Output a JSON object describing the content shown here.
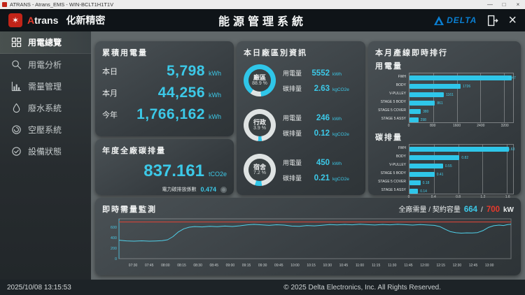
{
  "window": {
    "title": "ATRANS - Atrans_EMS - WIN-BCLT1H1T1V",
    "minimize_glyph": "—",
    "maximize_glyph": "□",
    "close_glyph": "×"
  },
  "header": {
    "logo_glyph": "✶",
    "brand_a": "A",
    "brand_rest": "trans",
    "brand_cn": "化新精密",
    "title": "能源管理系統",
    "delta_text": "DELTA",
    "close_glyph": "×"
  },
  "sidebar": {
    "items": [
      {
        "label": "用電總覽",
        "icon": "grid-icon",
        "active": true
      },
      {
        "label": "用電分析",
        "icon": "magnifier-icon",
        "active": false
      },
      {
        "label": "需量管理",
        "icon": "bar-chart-icon",
        "active": false
      },
      {
        "label": "廢水系統",
        "icon": "water-drop-icon",
        "active": false
      },
      {
        "label": "空壓系統",
        "icon": "compressor-icon",
        "active": false
      },
      {
        "label": "設備狀態",
        "icon": "check-circle-icon",
        "active": false
      }
    ]
  },
  "accumulated": {
    "title": "累積用電量",
    "rows": [
      {
        "label": "本日",
        "value": "5,798",
        "unit": "kWh"
      },
      {
        "label": "本月",
        "value": "44,256",
        "unit": "kWh"
      },
      {
        "label": "今年",
        "value": "1,766,162",
        "unit": "kWh"
      }
    ]
  },
  "carbon": {
    "title": "年度全廠碳排量",
    "value": "837.161",
    "unit": "tCO2e",
    "factor_label": "電力碳排放係數",
    "factor_value": "0.474"
  },
  "zones": {
    "title": "本日廠區別資訊",
    "power_label": "用電量",
    "carbon_label": "碳排量",
    "rows": [
      {
        "name": "廠區",
        "percent": "88.9",
        "percent_unit": "%",
        "power": "5552",
        "power_unit": "kWh",
        "carbon": "2.63",
        "carbon_unit": "kgCO2e",
        "ring_pct": 88.9,
        "ring_style": "main"
      },
      {
        "name": "行政",
        "percent": "3.9",
        "percent_unit": "%",
        "power": "246",
        "power_unit": "kWh",
        "carbon": "0.12",
        "carbon_unit": "kgCO2e",
        "ring_pct": 3.9,
        "ring_style": "accent"
      },
      {
        "name": "宿舍",
        "percent": "7.2",
        "percent_unit": "%",
        "power": "450",
        "power_unit": "kWh",
        "carbon": "0.21",
        "carbon_unit": "kgCO2e",
        "ring_pct": 7.2,
        "ring_style": "accent"
      }
    ]
  },
  "ranking": {
    "title": "本月產線即時排行",
    "power_section": "用電量",
    "carbon_section": "碳排量"
  },
  "demand": {
    "title": "即時需量監測",
    "legend_label": "全廠需量 / 契約容量",
    "current": "664",
    "separator": "/",
    "contract": "700",
    "unit": "kW"
  },
  "statusbar": {
    "datetime": "2025/10/08 13:15:53",
    "copyright": "© 2025 Delta Electronics, Inc. All Rights Reserved."
  },
  "colors": {
    "accent_cyan": "#2fc6e9",
    "alert_red": "#e8392b",
    "delta_blue": "#0a7fd2",
    "ring_light": "#dfe3e3"
  },
  "chart_data": [
    {
      "id": "power_ranking",
      "type": "bar",
      "orientation": "horizontal",
      "title": "用電量",
      "categories": [
        "FWH",
        "BODY",
        "V-PULLEY",
        "STAGE 5 BODY",
        "STAGE 5 COVER",
        "STAGE 5 ASSY"
      ],
      "values": [
        3447,
        1726,
        1161,
        861,
        380,
        298
      ],
      "ticks": [
        0,
        800,
        1600,
        2400,
        3200
      ],
      "xmax": 3500
    },
    {
      "id": "carbon_ranking",
      "type": "bar",
      "orientation": "horizontal",
      "title": "碳排量",
      "categories": [
        "FWH",
        "BODY",
        "V-PULLEY",
        "STAGE 5 BODY",
        "STAGE 5 COVER",
        "STAGE 5 ASSY"
      ],
      "values": [
        1.63,
        0.82,
        0.55,
        0.41,
        0.18,
        0.14
      ],
      "ticks": [
        0,
        0.4,
        0.8,
        1.2,
        1.6
      ],
      "xmax": 1.7
    },
    {
      "id": "demand_monitor",
      "type": "line",
      "title": "即時需量監測",
      "ylabel": "kW",
      "ylim": [
        0,
        760
      ],
      "limit_value": 700,
      "y_ticks": [
        0,
        200,
        400,
        600
      ],
      "x_ticks": [
        "07:30",
        "07:45",
        "08:00",
        "08:15",
        "08:30",
        "08:45",
        "09:00",
        "09:15",
        "09:30",
        "09:45",
        "10:00",
        "10:15",
        "10:30",
        "10:45",
        "11:00",
        "11:15",
        "11:30",
        "11:45",
        "12:00",
        "12:15",
        "12:30",
        "12:45",
        "13:00"
      ],
      "x_range_minutes": [
        437,
        800
      ],
      "points": [
        [
          437,
          352
        ],
        [
          444,
          338
        ],
        [
          451,
          334
        ],
        [
          458,
          340
        ],
        [
          465,
          333
        ],
        [
          471,
          337
        ],
        [
          477,
          343
        ],
        [
          482,
          360
        ],
        [
          487,
          420
        ],
        [
          492,
          510
        ],
        [
          497,
          570
        ],
        [
          502,
          600
        ],
        [
          507,
          612
        ],
        [
          514,
          605
        ],
        [
          521,
          616
        ],
        [
          528,
          609
        ],
        [
          535,
          621
        ],
        [
          542,
          613
        ],
        [
          549,
          627
        ],
        [
          556,
          645
        ],
        [
          562,
          654
        ],
        [
          569,
          645
        ],
        [
          576,
          635
        ],
        [
          583,
          647
        ],
        [
          590,
          640
        ],
        [
          597,
          621
        ],
        [
          604,
          616
        ],
        [
          611,
          632
        ],
        [
          618,
          625
        ],
        [
          625,
          638
        ],
        [
          632,
          650
        ],
        [
          639,
          644
        ],
        [
          646,
          652
        ],
        [
          653,
          646
        ],
        [
          660,
          656
        ],
        [
          667,
          648
        ],
        [
          674,
          642
        ],
        [
          681,
          652
        ],
        [
          688,
          646
        ],
        [
          695,
          655
        ],
        [
          702,
          648
        ],
        [
          709,
          640
        ],
        [
          716,
          650
        ],
        [
          723,
          642
        ],
        [
          729,
          635
        ],
        [
          734,
          612
        ],
        [
          739,
          562
        ],
        [
          744,
          515
        ],
        [
          749,
          495
        ],
        [
          754,
          487
        ],
        [
          759,
          492
        ],
        [
          764,
          489
        ],
        [
          769,
          497
        ],
        [
          774,
          535
        ],
        [
          779,
          595
        ],
        [
          784,
          628
        ],
        [
          789,
          640
        ],
        [
          793,
          632
        ],
        [
          797,
          650
        ],
        [
          800,
          655
        ]
      ]
    }
  ]
}
